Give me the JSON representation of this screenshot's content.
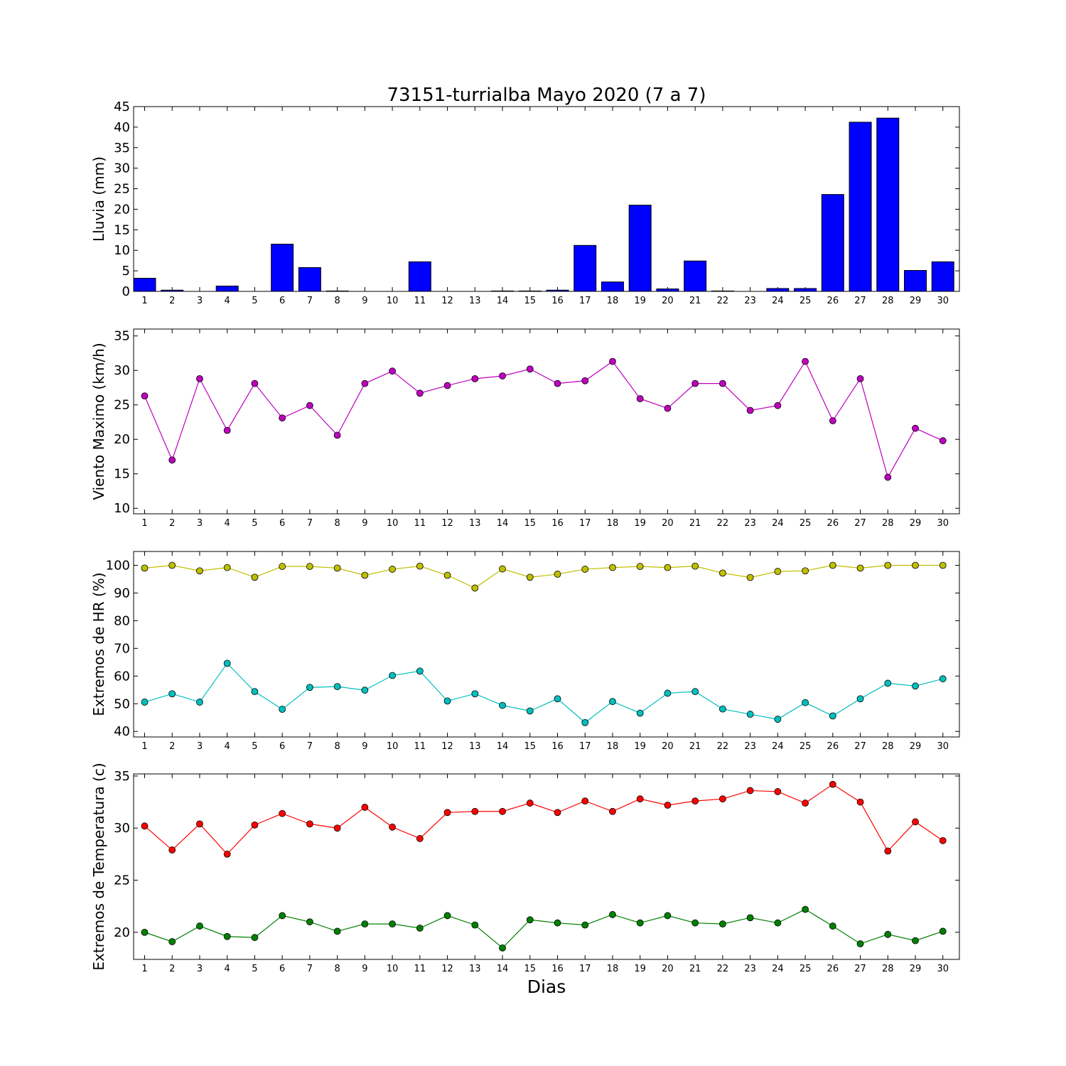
{
  "figure": {
    "title": "73151-turrialba Mayo 2020  (7 a 7)",
    "xlabel": "Dias"
  },
  "chart_data": [
    {
      "type": "bar",
      "ylabel": "Lluvia (mm)",
      "ylim": [
        0,
        45
      ],
      "yticks": [
        0,
        5,
        10,
        15,
        20,
        25,
        30,
        35,
        40,
        45
      ],
      "color": "#0000ff",
      "categories": [
        1,
        2,
        3,
        4,
        5,
        6,
        7,
        8,
        9,
        10,
        11,
        12,
        13,
        14,
        15,
        16,
        17,
        18,
        19,
        20,
        21,
        22,
        23,
        24,
        25,
        26,
        27,
        28,
        29,
        30
      ],
      "values": [
        3.2,
        0.3,
        0,
        1.3,
        0,
        11.5,
        5.8,
        0.1,
        0,
        0,
        7.2,
        0,
        0,
        0.1,
        0.1,
        0.3,
        11.2,
        2.3,
        21.0,
        0.6,
        7.4,
        0.1,
        0,
        0.7,
        0.7,
        23.6,
        41.2,
        42.2,
        5.1,
        7.2
      ]
    },
    {
      "type": "line",
      "ylabel": "Viento Maximo (km/h)",
      "ylim": [
        9.2,
        36
      ],
      "yticks": [
        10,
        15,
        20,
        25,
        30,
        35
      ],
      "x": [
        1,
        2,
        3,
        4,
        5,
        6,
        7,
        8,
        9,
        10,
        11,
        12,
        13,
        14,
        15,
        16,
        17,
        18,
        19,
        20,
        21,
        22,
        23,
        24,
        25,
        26,
        27,
        28,
        29,
        30
      ],
      "series": [
        {
          "color": "#bf00bf",
          "values": [
            26.3,
            17.0,
            28.8,
            21.3,
            28.1,
            23.1,
            24.9,
            20.6,
            28.1,
            29.9,
            26.7,
            27.8,
            28.8,
            29.2,
            30.2,
            28.1,
            28.5,
            31.3,
            25.9,
            24.5,
            28.1,
            28.1,
            24.2,
            24.9,
            31.3,
            22.7,
            28.8,
            14.5,
            21.6,
            19.8
          ]
        }
      ]
    },
    {
      "type": "line",
      "ylabel": "Extremos de HR (%)",
      "ylim": [
        38,
        105
      ],
      "yticks": [
        40,
        50,
        60,
        70,
        80,
        90,
        100
      ],
      "x": [
        1,
        2,
        3,
        4,
        5,
        6,
        7,
        8,
        9,
        10,
        11,
        12,
        13,
        14,
        15,
        16,
        17,
        18,
        19,
        20,
        21,
        22,
        23,
        24,
        25,
        26,
        27,
        28,
        29,
        30
      ],
      "series": [
        {
          "color": "#bfbf00",
          "values": [
            99.0,
            100.0,
            98.0,
            99.2,
            95.7,
            99.6,
            99.6,
            99.0,
            96.4,
            98.6,
            99.7,
            96.4,
            91.8,
            98.7,
            95.7,
            96.8,
            98.6,
            99.2,
            99.6,
            99.2,
            99.7,
            97.2,
            95.6,
            97.8,
            98.0,
            100.0,
            99.0,
            100.0,
            100.0,
            100.0
          ]
        },
        {
          "color": "#00bfbf",
          "values": [
            50.6,
            53.6,
            50.6,
            64.6,
            54.4,
            48.0,
            55.9,
            56.2,
            54.9,
            60.2,
            61.8,
            51.0,
            53.6,
            49.4,
            47.4,
            51.8,
            43.2,
            50.8,
            46.6,
            53.8,
            54.4,
            48.1,
            46.2,
            44.4,
            50.4,
            45.6,
            51.8,
            57.4,
            56.4,
            59.0
          ]
        }
      ]
    },
    {
      "type": "line",
      "ylabel": "Extremos de Temperatura (c)",
      "ylim": [
        17.4,
        35.2
      ],
      "yticks": [
        20,
        25,
        30,
        35
      ],
      "x": [
        1,
        2,
        3,
        4,
        5,
        6,
        7,
        8,
        9,
        10,
        11,
        12,
        13,
        14,
        15,
        16,
        17,
        18,
        19,
        20,
        21,
        22,
        23,
        24,
        25,
        26,
        27,
        28,
        29,
        30
      ],
      "series": [
        {
          "color": "#ff0000",
          "values": [
            30.2,
            27.9,
            30.4,
            27.5,
            30.3,
            31.4,
            30.4,
            30.0,
            32.0,
            30.1,
            29.0,
            31.5,
            31.6,
            31.6,
            32.4,
            31.5,
            32.6,
            31.6,
            32.8,
            32.2,
            32.6,
            32.8,
            33.6,
            33.5,
            32.4,
            34.2,
            32.5,
            27.8,
            30.6,
            28.8
          ]
        },
        {
          "color": "#008000",
          "values": [
            20.0,
            19.1,
            20.6,
            19.6,
            19.5,
            21.6,
            21.0,
            20.1,
            20.8,
            20.8,
            20.4,
            21.6,
            20.7,
            18.5,
            21.2,
            20.9,
            20.7,
            21.7,
            20.9,
            21.6,
            20.9,
            20.8,
            21.4,
            20.9,
            22.2,
            20.6,
            18.9,
            19.8,
            19.2,
            20.1
          ]
        }
      ]
    }
  ]
}
